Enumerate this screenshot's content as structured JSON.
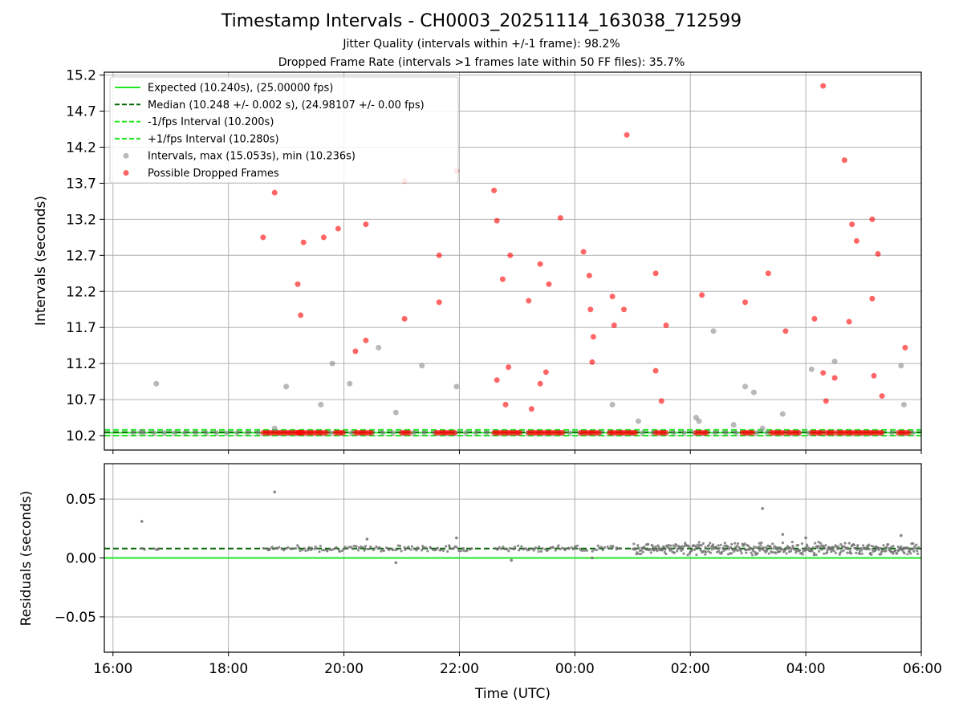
{
  "chart_data": [
    {
      "type": "scatter",
      "title": "Timestamp Intervals - CH0003_20251114_163038_712599",
      "subtitle_1": "Jitter Quality (intervals within +/-1 frame): 98.2%",
      "subtitle_2": "Dropped Frame Rate (intervals >1 frames late within 50 FF files): 35.7%",
      "xlabel": "Time (UTC)",
      "ylabel": "Intervals (seconds)",
      "x_unit": "hours since 16:00 UTC",
      "xlim": [
        -0.15,
        14.0
      ],
      "ylim": [
        10.0,
        15.24
      ],
      "yticks": [
        10.2,
        10.7,
        11.2,
        11.7,
        12.2,
        12.7,
        13.2,
        13.7,
        14.2,
        14.7,
        15.2
      ],
      "ytick_labels": [
        "10.2",
        "10.7",
        "11.2",
        "11.7",
        "12.2",
        "12.7",
        "13.2",
        "13.7",
        "14.2",
        "14.7",
        "15.2"
      ],
      "xticks": [
        0,
        2,
        4,
        6,
        8,
        10,
        12,
        14
      ],
      "xtick_labels": [
        "16:00",
        "18:00",
        "20:00",
        "22:00",
        "00:00",
        "02:00",
        "04:00",
        "06:00"
      ],
      "grid": true,
      "legend_position": "top-left",
      "colors": {
        "expected": "#22e622",
        "median": "#006400",
        "intervals": "#808080",
        "dropped": "#ff0000"
      },
      "lines": [
        {
          "name": "Expected (10.240s), (25.00000 fps)",
          "y": 10.24,
          "style": "solid"
        },
        {
          "name": "Median (10.248 +/- 0.002 s), (24.98107 +/- 0.00 fps)",
          "y": 10.248,
          "style": "dashed"
        },
        {
          "name": "-1/fps Interval (10.200s)",
          "y": 10.2,
          "style": "dashed"
        },
        {
          "name": "+1/fps Interval (10.280s)",
          "y": 10.28,
          "style": "dashed"
        }
      ],
      "series": [
        {
          "name": "Intervals, max (15.053s), min (10.236s)",
          "points": [
            [
              0.75,
              10.92
            ],
            [
              0.48,
              10.25
            ],
            [
              2.8,
              10.3
            ],
            [
              3.0,
              10.88
            ],
            [
              3.6,
              10.63
            ],
            [
              3.8,
              11.2
            ],
            [
              4.1,
              10.92
            ],
            [
              4.6,
              11.42
            ],
            [
              4.9,
              10.52
            ],
            [
              5.35,
              11.17
            ],
            [
              5.95,
              10.88
            ],
            [
              8.65,
              10.63
            ],
            [
              9.1,
              10.4
            ],
            [
              10.1,
              10.45
            ],
            [
              10.15,
              10.4
            ],
            [
              10.4,
              11.65
            ],
            [
              10.75,
              10.35
            ],
            [
              10.95,
              10.88
            ],
            [
              11.1,
              10.8
            ],
            [
              11.25,
              10.3
            ],
            [
              11.6,
              10.5
            ],
            [
              12.1,
              11.12
            ],
            [
              12.5,
              11.23
            ],
            [
              13.65,
              11.17
            ],
            [
              13.7,
              10.63
            ]
          ]
        },
        {
          "name": "Possible Dropped Frames",
          "points": [
            [
              2.8,
              13.57
            ],
            [
              2.6,
              12.95
            ],
            [
              3.2,
              12.3
            ],
            [
              3.25,
              11.87
            ],
            [
              3.3,
              12.88
            ],
            [
              3.65,
              12.95
            ],
            [
              3.9,
              13.07
            ],
            [
              4.2,
              11.37
            ],
            [
              4.38,
              11.52
            ],
            [
              4.38,
              13.13
            ],
            [
              5.05,
              11.82
            ],
            [
              5.05,
              13.73
            ],
            [
              5.65,
              12.7
            ],
            [
              5.65,
              12.05
            ],
            [
              5.95,
              13.87
            ],
            [
              6.6,
              13.6
            ],
            [
              6.65,
              13.18
            ],
            [
              6.65,
              10.97
            ],
            [
              6.75,
              12.37
            ],
            [
              6.8,
              10.63
            ],
            [
              6.85,
              11.15
            ],
            [
              6.88,
              12.7
            ],
            [
              7.2,
              12.07
            ],
            [
              7.25,
              10.57
            ],
            [
              7.4,
              12.58
            ],
            [
              7.4,
              10.92
            ],
            [
              7.5,
              11.08
            ],
            [
              7.55,
              12.3
            ],
            [
              7.75,
              13.22
            ],
            [
              8.15,
              12.75
            ],
            [
              8.25,
              12.42
            ],
            [
              8.27,
              11.95
            ],
            [
              8.3,
              11.22
            ],
            [
              8.32,
              11.57
            ],
            [
              8.65,
              12.13
            ],
            [
              8.68,
              11.73
            ],
            [
              8.85,
              11.95
            ],
            [
              8.9,
              14.37
            ],
            [
              9.4,
              12.45
            ],
            [
              9.4,
              11.1
            ],
            [
              9.5,
              10.68
            ],
            [
              9.58,
              11.73
            ],
            [
              10.2,
              12.15
            ],
            [
              10.95,
              12.05
            ],
            [
              11.35,
              12.45
            ],
            [
              11.65,
              11.65
            ],
            [
              12.15,
              11.82
            ],
            [
              12.3,
              15.05
            ],
            [
              12.3,
              11.07
            ],
            [
              12.35,
              10.68
            ],
            [
              12.5,
              11.0
            ],
            [
              12.67,
              14.02
            ],
            [
              12.75,
              11.78
            ],
            [
              12.8,
              13.13
            ],
            [
              12.88,
              12.9
            ],
            [
              13.15,
              13.2
            ],
            [
              13.15,
              12.1
            ],
            [
              13.18,
              11.03
            ],
            [
              13.25,
              12.72
            ],
            [
              13.32,
              10.75
            ],
            [
              13.72,
              11.42
            ]
          ]
        }
      ]
    },
    {
      "type": "scatter",
      "ylabel": "Residuals (seconds)",
      "x_unit": "hours since 16:00 UTC",
      "xlim": [
        -0.15,
        14.0
      ],
      "ylim": [
        -0.08,
        0.08
      ],
      "yticks": [
        -0.05,
        0.0,
        0.05
      ],
      "ytick_labels": [
        "−0.05",
        "0.00",
        "0.05"
      ],
      "grid": true,
      "lines": [
        {
          "name": "Expected residual",
          "y": 0.0,
          "style": "solid"
        },
        {
          "name": "Median residual",
          "y": 0.008,
          "style": "dashed"
        }
      ],
      "series": [
        {
          "name": "Residuals",
          "band": {
            "center": 0.008,
            "spread_sparse": 0.003,
            "spread_dense": 0.006,
            "dense_from_x": 9.0
          },
          "outliers": [
            [
              0.5,
              0.031
            ],
            [
              2.8,
              0.056
            ],
            [
              11.25,
              0.042
            ],
            [
              6.9,
              -0.002
            ],
            [
              4.9,
              -0.004
            ],
            [
              11.6,
              0.02
            ],
            [
              12.0,
              0.017
            ],
            [
              4.4,
              0.016
            ],
            [
              5.95,
              0.017
            ],
            [
              13.65,
              0.019
            ],
            [
              8.3,
              0.0
            ]
          ]
        }
      ]
    }
  ]
}
